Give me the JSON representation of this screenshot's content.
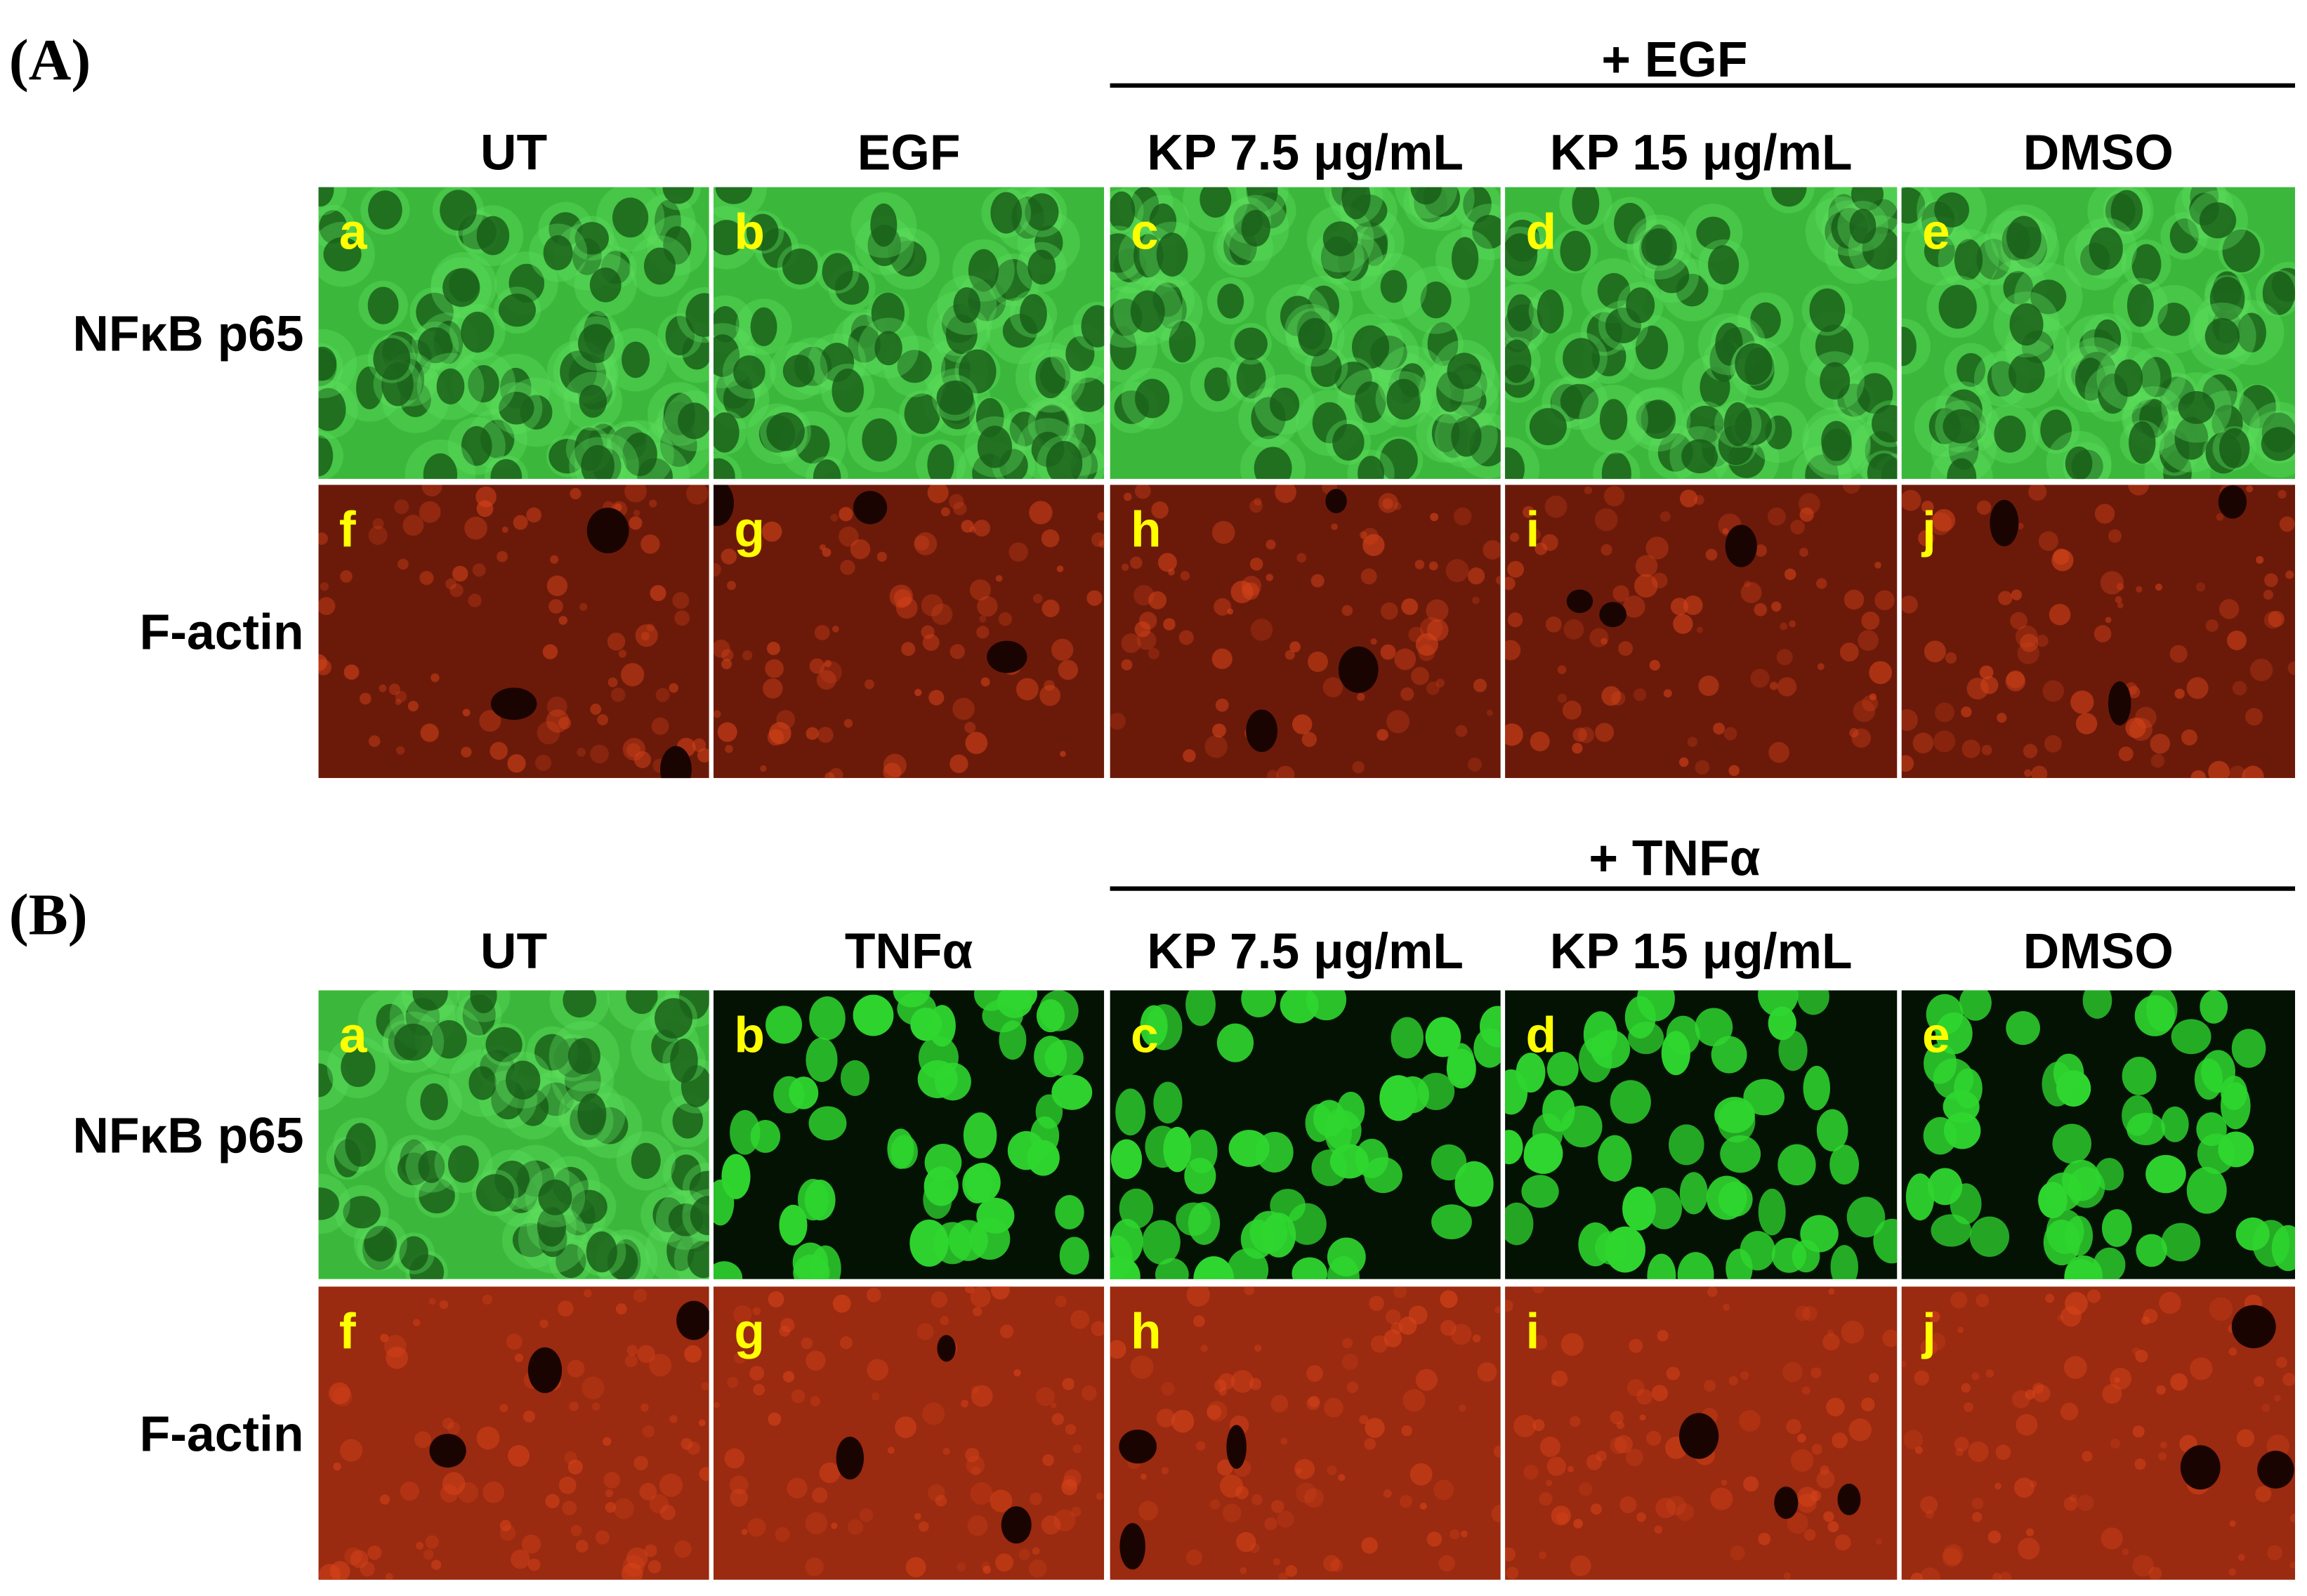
{
  "panels": [
    {
      "label": "(A)",
      "treatment": "+ EGF",
      "columns": [
        "UT",
        "EGF",
        "KP 7.5 μg/mL",
        "KP 15 μg/mL",
        "DMSO"
      ],
      "rows": [
        {
          "label": "NFκB p65",
          "letters": [
            "a",
            "b",
            "c",
            "d",
            "e"
          ]
        },
        {
          "label": "F-actin",
          "letters": [
            "f",
            "g",
            "h",
            "i",
            "j"
          ]
        }
      ]
    },
    {
      "label": "(B)",
      "treatment": "+ TNFα",
      "columns": [
        "UT",
        "TNFα",
        "KP 7.5 μg/mL",
        "KP 15 μg/mL",
        "DMSO"
      ],
      "rows": [
        {
          "label": "NFκB p65",
          "letters": [
            "a",
            "b",
            "c",
            "d",
            "e"
          ]
        },
        {
          "label": "F-actin",
          "letters": [
            "f",
            "g",
            "h",
            "i",
            "j"
          ]
        }
      ]
    }
  ]
}
